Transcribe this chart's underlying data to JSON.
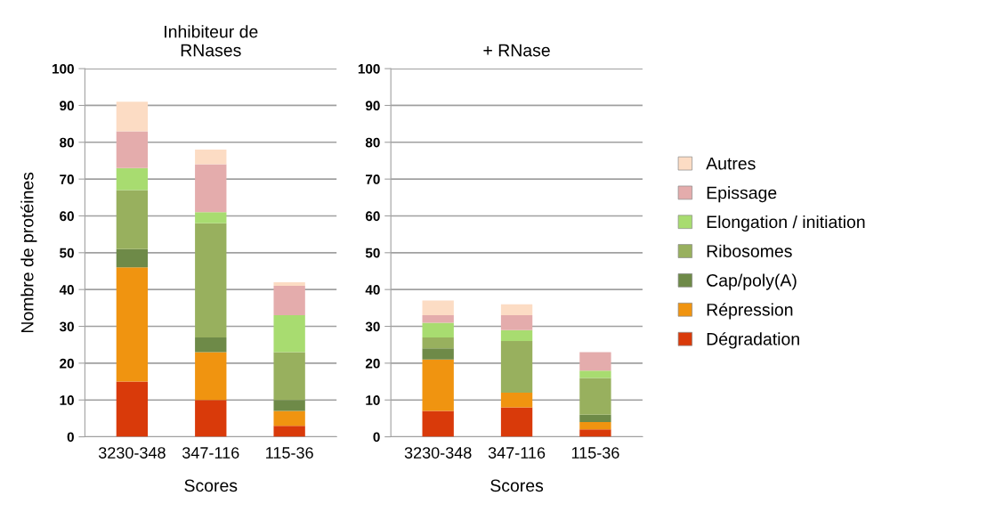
{
  "chart_data": [
    {
      "type": "bar",
      "stacked": true,
      "title": "Inhibiteur de\nRNases",
      "xlabel": "Scores",
      "ylabel": "Nombre de protéines",
      "categories": [
        "3230-348",
        "347-116",
        "115-36"
      ],
      "ylim": [
        0,
        100
      ],
      "yticks": [
        0,
        10,
        20,
        30,
        40,
        50,
        60,
        70,
        80,
        90,
        100
      ],
      "grid": "y",
      "series": [
        {
          "color": "#d93a0a",
          "values": [
            15,
            10,
            3
          ]
        },
        {
          "color": "#f09410",
          "values": [
            31,
            13,
            4
          ]
        },
        {
          "color": "#6e8a48",
          "values": [
            5,
            4,
            3
          ]
        },
        {
          "color": "#98b05e",
          "values": [
            16,
            31,
            13
          ]
        },
        {
          "color": "#a8dc70",
          "values": [
            6,
            3,
            10
          ]
        },
        {
          "color": "#e4acac",
          "values": [
            10,
            13,
            8
          ]
        },
        {
          "color": "#fcdcc4",
          "values": [
            8,
            4,
            1
          ]
        }
      ]
    },
    {
      "type": "bar",
      "stacked": true,
      "title": "+ RNase",
      "xlabel": "Scores",
      "categories": [
        "3230-348",
        "347-116",
        "115-36"
      ],
      "ylim": [
        0,
        100
      ],
      "yticks": [
        0,
        10,
        20,
        30,
        40,
        50,
        60,
        70,
        80,
        90,
        100
      ],
      "grid": "y",
      "legend": "right",
      "series": [
        {
          "name": "Dégradation",
          "color": "#d93a0a",
          "values": [
            7,
            8,
            2
          ]
        },
        {
          "name": "Répression",
          "color": "#f09410",
          "values": [
            14,
            4,
            2
          ]
        },
        {
          "name": "Cap/poly(A)",
          "color": "#6e8a48",
          "values": [
            3,
            0,
            2
          ]
        },
        {
          "name": "Ribosomes",
          "color": "#98b05e",
          "values": [
            3,
            14,
            10
          ]
        },
        {
          "name": "Elongation / initiation",
          "color": "#a8dc70",
          "values": [
            4,
            3,
            2
          ]
        },
        {
          "name": "Epissage",
          "color": "#e4acac",
          "values": [
            2,
            4,
            5
          ]
        },
        {
          "name": "Autres",
          "color": "#fcdcc4",
          "values": [
            4,
            3,
            0
          ]
        }
      ]
    }
  ]
}
